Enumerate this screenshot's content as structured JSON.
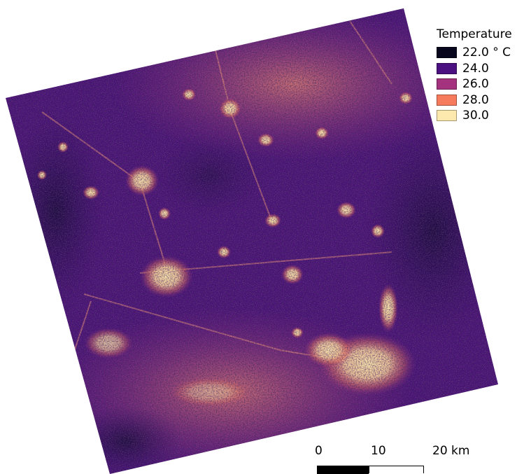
{
  "legend": {
    "title": "Temperature",
    "items": [
      {
        "label": "22.0 ° C",
        "value": 22.0,
        "color": "#07061d"
      },
      {
        "label": "24.0",
        "value": 24.0,
        "color": "#4c1181"
      },
      {
        "label": "26.0",
        "value": 26.0,
        "color": "#a5327f"
      },
      {
        "label": "28.0",
        "value": 28.0,
        "color": "#f67b5c"
      },
      {
        "label": "30.0",
        "value": 30.0,
        "color": "#fde8ad"
      }
    ]
  },
  "scale_bar": {
    "labels": [
      "0",
      "10",
      "20 km"
    ]
  }
}
